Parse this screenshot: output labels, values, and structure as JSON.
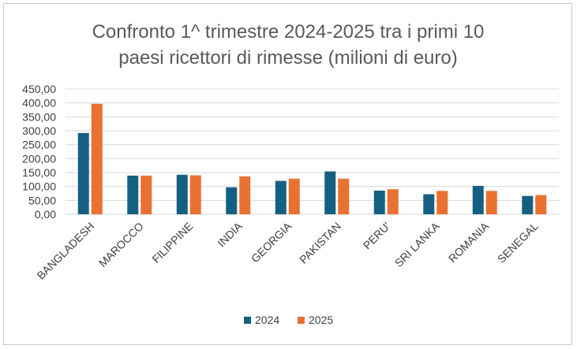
{
  "chart_data": {
    "type": "bar",
    "title_lines": [
      "Confronto 1^ trimestre 2024-2025 tra i primi 10",
      "paesi ricettori di rimesse (milioni di euro)"
    ],
    "categories": [
      "BANGLADESH",
      "MAROCCO",
      "FILIPPINE",
      "INDIA",
      "GEORGIA",
      "PAKISTAN",
      "PERU'",
      "SRI LANKA",
      "ROMANIA",
      "SENEGAL"
    ],
    "series": [
      {
        "name": "2024",
        "color": "#156082",
        "values": [
          292,
          139,
          142,
          97,
          120,
          154,
          85,
          72,
          102,
          66
        ]
      },
      {
        "name": "2025",
        "color": "#E97132",
        "values": [
          397,
          139,
          140,
          136,
          128,
          128,
          90,
          84,
          84,
          69
        ]
      }
    ],
    "ylim": [
      0,
      450
    ],
    "yticks": [
      "0,00",
      "50,00",
      "100,00",
      "150,00",
      "200,00",
      "250,00",
      "300,00",
      "350,00",
      "400,00",
      "450,00"
    ],
    "ytick_values": [
      0,
      50,
      100,
      150,
      200,
      250,
      300,
      350,
      400,
      450
    ],
    "grid": true,
    "legend_position": "bottom"
  }
}
